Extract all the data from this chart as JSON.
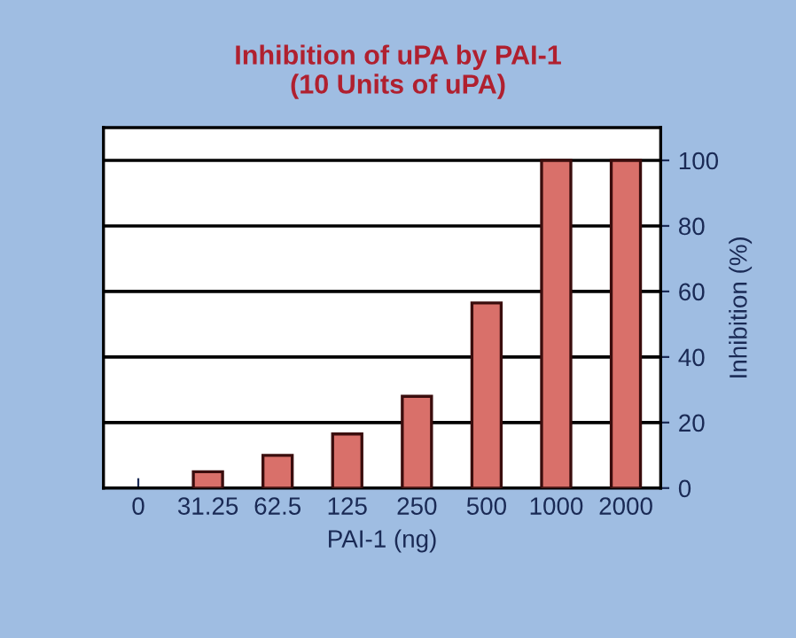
{
  "chart_data": {
    "type": "bar",
    "title": "Inhibition of uPA by PAI-1\n(10 Units of uPA)",
    "xlabel": "PAI-1 (ng)",
    "ylabel": "Inhibition (%)",
    "categories": [
      "0",
      "31.25",
      "62.5",
      "125",
      "250",
      "500",
      "1000",
      "2000"
    ],
    "values": [
      0,
      5,
      10,
      16.5,
      28,
      56.5,
      100,
      100
    ],
    "color": "#d9706a",
    "ylim": [
      0,
      110
    ],
    "yticks": [
      0,
      20,
      40,
      60,
      80,
      100
    ],
    "grid": "y"
  }
}
